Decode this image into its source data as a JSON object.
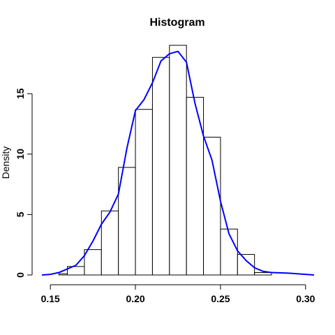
{
  "chart_data": {
    "type": "bar",
    "title": "Histogram",
    "xlabel": "",
    "ylabel": "Density",
    "xlim": [
      0.145,
      0.305
    ],
    "ylim": [
      0,
      19.4
    ],
    "x_ticks": [
      0.15,
      0.2,
      0.25,
      0.3
    ],
    "x_tick_labels": [
      "0.15",
      "0.20",
      "0.25",
      "0.30"
    ],
    "y_ticks": [
      0,
      5,
      10,
      15
    ],
    "y_tick_labels": [
      "0",
      "5",
      "10",
      "15"
    ],
    "bins": [
      {
        "x0": 0.155,
        "x1": 0.16,
        "value": 0.1
      },
      {
        "x0": 0.16,
        "x1": 0.17,
        "value": 0.7
      },
      {
        "x0": 0.17,
        "x1": 0.18,
        "value": 2.1
      },
      {
        "x0": 0.18,
        "x1": 0.19,
        "value": 5.3
      },
      {
        "x0": 0.19,
        "x1": 0.2,
        "value": 8.9
      },
      {
        "x0": 0.2,
        "x1": 0.21,
        "value": 13.7
      },
      {
        "x0": 0.21,
        "x1": 0.22,
        "value": 18.0
      },
      {
        "x0": 0.22,
        "x1": 0.23,
        "value": 19.0
      },
      {
        "x0": 0.23,
        "x1": 0.24,
        "value": 14.7
      },
      {
        "x0": 0.24,
        "x1": 0.25,
        "value": 11.4
      },
      {
        "x0": 0.25,
        "x1": 0.26,
        "value": 3.8
      },
      {
        "x0": 0.26,
        "x1": 0.27,
        "value": 1.7
      },
      {
        "x0": 0.27,
        "x1": 0.28,
        "value": 0.2
      }
    ],
    "density_curve": {
      "color": "#0000ff",
      "x": [
        0.145,
        0.15,
        0.155,
        0.16,
        0.165,
        0.17,
        0.175,
        0.18,
        0.185,
        0.19,
        0.195,
        0.2,
        0.205,
        0.21,
        0.215,
        0.22,
        0.225,
        0.23,
        0.235,
        0.24,
        0.245,
        0.25,
        0.255,
        0.26,
        0.265,
        0.27,
        0.275,
        0.28,
        0.29,
        0.3,
        0.305
      ],
      "y": [
        0.0,
        0.05,
        0.2,
        0.5,
        0.8,
        1.6,
        2.8,
        4.2,
        5.2,
        6.7,
        10.5,
        13.6,
        14.5,
        15.9,
        17.7,
        18.3,
        18.5,
        17.6,
        14.2,
        11.5,
        9.5,
        6.1,
        3.4,
        2.0,
        1.2,
        0.6,
        0.3,
        0.2,
        0.15,
        0.05,
        0.0
      ]
    },
    "legend": "none",
    "grid": false
  }
}
